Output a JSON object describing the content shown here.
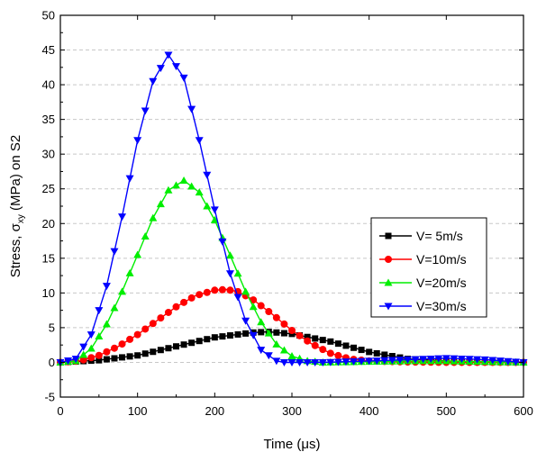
{
  "chart_data": {
    "type": "line",
    "xlabel_parts": [
      "Time (",
      "μ",
      "s)"
    ],
    "ylabel_parts": [
      "Stress, ",
      "σ",
      "xy",
      " (MPa) on S2"
    ],
    "xlim": [
      0,
      600
    ],
    "ylim": [
      -5,
      50
    ],
    "xticks": [
      0,
      100,
      200,
      300,
      400,
      500,
      600
    ],
    "yticks": [
      -5,
      0,
      5,
      10,
      15,
      20,
      25,
      30,
      35,
      40,
      45,
      50
    ],
    "legend_position": "center-right",
    "grid": "dashed horizontal",
    "series": [
      {
        "name": "V=  5m/s",
        "color": "#000000",
        "marker": "square",
        "x": [
          0,
          50,
          100,
          150,
          200,
          250,
          270,
          300,
          350,
          400,
          450,
          500,
          550,
          600
        ],
        "y": [
          0,
          0.3,
          1.0,
          2.3,
          3.6,
          4.3,
          4.4,
          4.1,
          3.0,
          1.5,
          0.5,
          0.2,
          0.05,
          0
        ]
      },
      {
        "name": "V=10m/s",
        "color": "#ff0000",
        "marker": "circle",
        "x": [
          0,
          25,
          50,
          75,
          100,
          125,
          150,
          175,
          200,
          215,
          230,
          250,
          275,
          300,
          325,
          350,
          375,
          400,
          450,
          500,
          550,
          600
        ],
        "y": [
          0,
          0.2,
          1.0,
          2.3,
          4.0,
          6.0,
          8.0,
          9.6,
          10.4,
          10.5,
          10.2,
          9.0,
          6.9,
          4.6,
          2.7,
          1.3,
          0.5,
          0.2,
          0.05,
          0,
          0,
          0
        ]
      },
      {
        "name": "V=20m/s",
        "color": "#00ee00",
        "marker": "triangle-up",
        "x": [
          0,
          20,
          40,
          60,
          80,
          100,
          120,
          140,
          160,
          180,
          200,
          220,
          240,
          260,
          280,
          300,
          320,
          340,
          400,
          450,
          500,
          550,
          600
        ],
        "y": [
          0,
          0.2,
          2.0,
          5.5,
          10.2,
          15.5,
          20.8,
          24.8,
          26.2,
          24.5,
          20.5,
          15.4,
          10.2,
          5.8,
          2.6,
          0.9,
          0.2,
          0,
          0.1,
          0.2,
          0.2,
          0.1,
          0
        ]
      },
      {
        "name": "V=30m/s",
        "color": "#0000ff",
        "marker": "triangle-down",
        "x": [
          0,
          20,
          40,
          60,
          80,
          100,
          120,
          140,
          160,
          180,
          200,
          220,
          240,
          260,
          280,
          290,
          300,
          320,
          340,
          400,
          450,
          500,
          550,
          600
        ],
        "y": [
          0,
          0.5,
          4.0,
          11.0,
          21.0,
          32.0,
          40.5,
          44.3,
          41.0,
          32.0,
          22.0,
          12.8,
          6.0,
          1.8,
          0.2,
          0,
          0,
          0,
          0,
          0.2,
          0.4,
          0.6,
          0.4,
          0
        ]
      }
    ]
  }
}
